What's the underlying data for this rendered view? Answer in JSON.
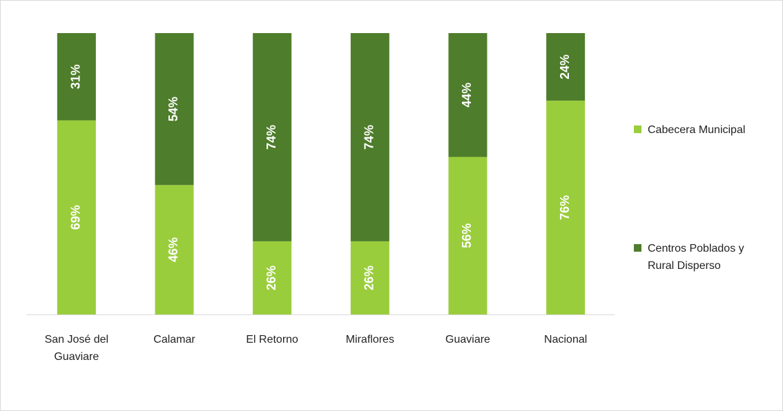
{
  "chart_data": {
    "type": "stacked_bar",
    "categories": [
      "San José del Guaviare",
      "Calamar",
      "El Retorno",
      "Miraflores",
      "Guaviare",
      "Nacional"
    ],
    "series": [
      {
        "name": "Cabecera Municipal",
        "color": "#9acd3c",
        "values": [
          69,
          46,
          26,
          26,
          56,
          76
        ],
        "value_labels": [
          "69%",
          "46%",
          "26%",
          "26%",
          "56%",
          "76%"
        ]
      },
      {
        "name": "Centros Poblados y Rural Disperso",
        "color": "#4e7d2b",
        "values": [
          31,
          54,
          74,
          74,
          44,
          24
        ],
        "value_labels": [
          "31%",
          "54%",
          "74%",
          "74%",
          "44%",
          "24%"
        ]
      }
    ],
    "ylim": [
      0,
      100
    ],
    "legend": "right"
  }
}
